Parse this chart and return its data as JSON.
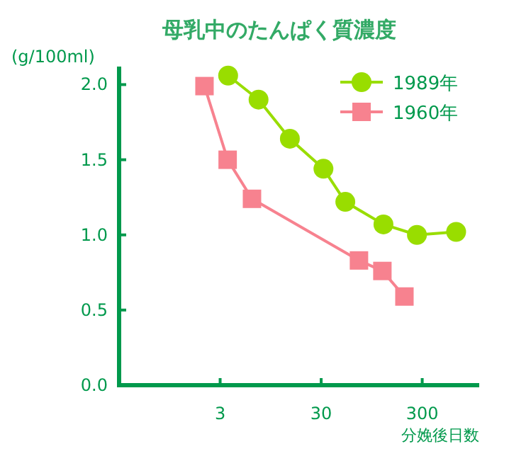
{
  "chart_data": {
    "type": "line",
    "title": "母乳中のたんぱく質濃度",
    "ylabel": "(g/100ml)",
    "xlabel": "分娩後日数",
    "log": "x",
    "xlim": [
      0.3,
      1100
    ],
    "xticks": [
      3,
      30,
      300
    ],
    "ylim": [
      0,
      2.12
    ],
    "yticks": [
      {
        "value": 0,
        "label": "0.0"
      },
      0.5,
      {
        "value": 1,
        "label": "1.0"
      },
      1.5,
      {
        "value": 2,
        "label": "2.0"
      }
    ],
    "grid": false,
    "legend": "top right",
    "line_style": "solid",
    "series": [
      {
        "name": "1989年",
        "color": "#99dd00",
        "marker": "circle",
        "x": [
          3.6,
          7.2,
          14.7,
          31.6,
          52,
          124,
          266,
          650
        ],
        "values": [
          2.06,
          1.9,
          1.64,
          1.44,
          1.22,
          1.07,
          1.0,
          1.02
        ]
      },
      {
        "name": "1960年",
        "color": "#f7828f",
        "marker": "square",
        "x": [
          2.1,
          3.56,
          6.2,
          71,
          121,
          200
        ],
        "values": [
          1.99,
          1.5,
          1.24,
          0.83,
          0.76,
          0.59
        ]
      }
    ]
  }
}
